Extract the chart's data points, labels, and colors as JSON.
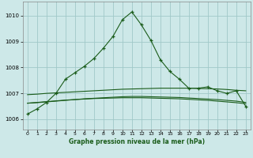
{
  "title": "Graphe pression niveau de la mer (hPa)",
  "background_color": "#cde8e8",
  "grid_color": "#a0c8c8",
  "line_color": "#1a5c1a",
  "ylim": [
    1005.6,
    1010.55
  ],
  "yticks": [
    1006,
    1007,
    1008,
    1009,
    1010
  ],
  "xlim": [
    -0.5,
    23.5
  ],
  "xticks": [
    0,
    1,
    2,
    3,
    4,
    5,
    6,
    7,
    8,
    9,
    10,
    11,
    12,
    13,
    14,
    15,
    16,
    17,
    18,
    19,
    20,
    21,
    22,
    23
  ],
  "series_main": [
    1006.2,
    1006.4,
    1006.65,
    1007.0,
    1007.55,
    1007.8,
    1008.05,
    1008.35,
    1008.75,
    1009.2,
    1009.85,
    1010.15,
    1009.65,
    1009.05,
    1008.3,
    1007.85,
    1007.55,
    1007.2,
    1007.2,
    1007.25,
    1007.1,
    1007.0,
    1007.1,
    1006.5
  ],
  "series_ref1": [
    1006.95,
    1006.97,
    1007.0,
    1007.02,
    1007.04,
    1007.06,
    1007.08,
    1007.1,
    1007.12,
    1007.14,
    1007.16,
    1007.17,
    1007.18,
    1007.19,
    1007.2,
    1007.2,
    1007.2,
    1007.2,
    1007.19,
    1007.18,
    1007.17,
    1007.15,
    1007.12,
    1007.1
  ],
  "series_ref2": [
    1006.62,
    1006.64,
    1006.67,
    1006.7,
    1006.73,
    1006.76,
    1006.79,
    1006.81,
    1006.83,
    1006.85,
    1006.87,
    1006.88,
    1006.88,
    1006.87,
    1006.86,
    1006.85,
    1006.84,
    1006.82,
    1006.8,
    1006.78,
    1006.76,
    1006.73,
    1006.7,
    1006.65
  ],
  "series_ref3": [
    1006.62,
    1006.65,
    1006.68,
    1006.71,
    1006.74,
    1006.76,
    1006.78,
    1006.8,
    1006.81,
    1006.82,
    1006.83,
    1006.83,
    1006.83,
    1006.82,
    1006.81,
    1006.8,
    1006.79,
    1006.77,
    1006.75,
    1006.73,
    1006.7,
    1006.67,
    1006.64,
    1006.6
  ]
}
